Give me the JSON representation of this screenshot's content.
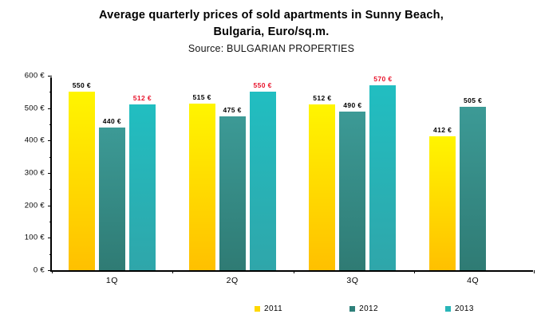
{
  "header": {
    "title_line1": "Average quarterly prices of sold apartments in Sunny Beach,",
    "title_line2": "Bulgaria, Euro/sq.m.",
    "source": "Source: BULGARIAN PROPERTIES"
  },
  "chart_data": {
    "type": "bar",
    "title": "Average quarterly prices of sold apartments in Sunny Beach, Bulgaria, Euro/sq.m.",
    "subtitle": "Source: BULGARIAN PROPERTIES",
    "categories": [
      "1Q",
      "2Q",
      "3Q",
      "4Q"
    ],
    "series": [
      {
        "name": "2011",
        "values": [
          550,
          515,
          512,
          412
        ],
        "color_top": "#FFF500",
        "color_bottom": "#FFC000",
        "legend_color": "#FFD800",
        "label_color": "#000000"
      },
      {
        "name": "2012",
        "values": [
          440,
          475,
          490,
          505
        ],
        "color_top": "#3C9A96",
        "color_bottom": "#2F7B74",
        "legend_color": "#2E807A",
        "label_color": "#000000"
      },
      {
        "name": "2013",
        "values": [
          512,
          550,
          570,
          null
        ],
        "color_top": "#21BEC1",
        "color_bottom": "#2FA6AA",
        "legend_color": "#29B5B8",
        "label_color": "#E8132B"
      }
    ],
    "unit": "€",
    "xlabel": "",
    "ylabel": "",
    "ylim": [
      0,
      600
    ],
    "ytick_step": 100,
    "y_minor_step": 50,
    "grid": false,
    "legend_position": "bottom",
    "label_format": "value unit",
    "axis_color": "#000000",
    "background": "#FFFFFF"
  }
}
